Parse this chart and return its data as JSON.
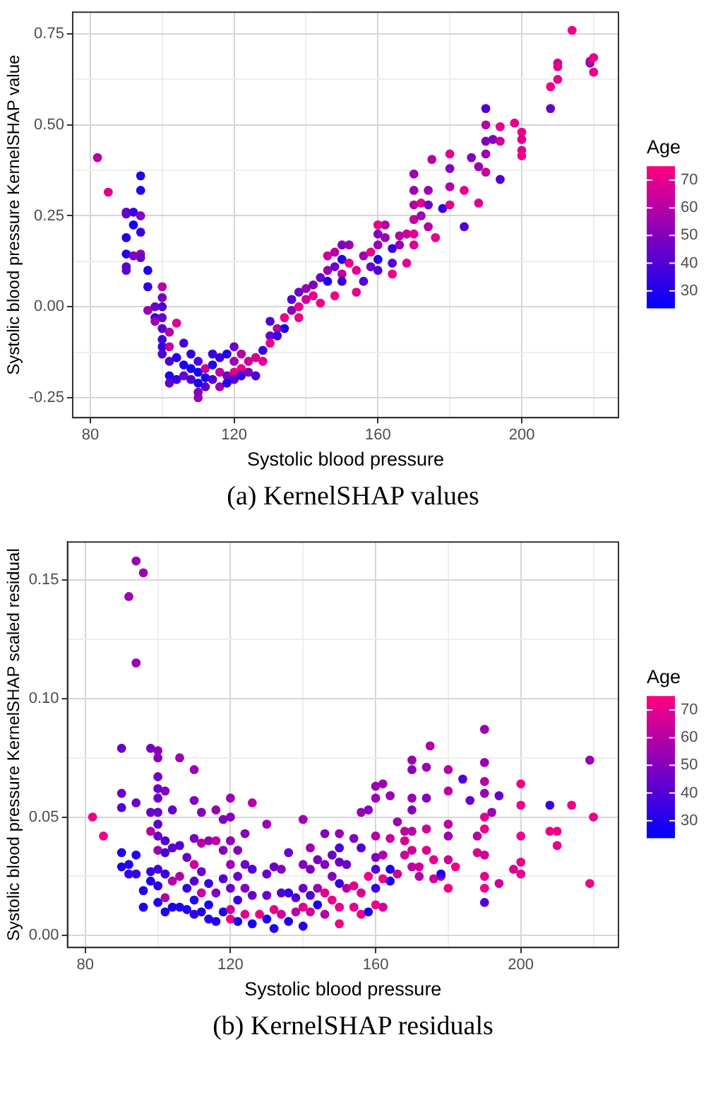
{
  "chart_data": [
    {
      "type": "scatter",
      "title": "(a) KernelSHAP values",
      "xlabel": "Systolic blood pressure",
      "ylabel": "Systolic blood pressure KernelSHAP value",
      "clabel": "Age",
      "grid": true,
      "marker": "circle",
      "xlim": [
        75.1,
        226.9
      ],
      "ylim": [
        -0.305,
        0.81
      ],
      "xticks": [
        80,
        {
          "value": 100,
          "label": null
        },
        120,
        {
          "value": 140,
          "label": null
        },
        160,
        {
          "value": 180,
          "label": null
        },
        200,
        {
          "value": 220,
          "label": null
        }
      ],
      "yticks": [
        {
          "value": -0.25,
          "label": "-0.25"
        },
        {
          "value": -0.125,
          "label": null
        },
        {
          "value": 0,
          "label": "0.00"
        },
        {
          "value": 0.125,
          "label": null
        },
        {
          "value": 0.25,
          "label": "0.25"
        },
        {
          "value": 0.375,
          "label": null
        },
        {
          "value": 0.5,
          "label": "0.50"
        },
        {
          "value": 0.625,
          "label": null
        },
        {
          "value": 0.75,
          "label": "0.75"
        }
      ],
      "clim": [
        24,
        75
      ],
      "cticks": [
        30,
        40,
        50,
        60,
        70
      ],
      "x": [
        82,
        85,
        90,
        90,
        90,
        90,
        90,
        90,
        92,
        92,
        92,
        94,
        94,
        94,
        94,
        94,
        94,
        96,
        96,
        96,
        98,
        98,
        98,
        100,
        100,
        100,
        100,
        100,
        100,
        100,
        100,
        102,
        102,
        102,
        102,
        102,
        104,
        104,
        104,
        106,
        106,
        106,
        108,
        108,
        108,
        110,
        110,
        110,
        110,
        110,
        112,
        112,
        112,
        114,
        114,
        114,
        116,
        116,
        116,
        118,
        118,
        118,
        120,
        120,
        120,
        120,
        122,
        122,
        122,
        124,
        124,
        126,
        126,
        128,
        128,
        130,
        130,
        130,
        132,
        132,
        134,
        134,
        136,
        136,
        138,
        138,
        138,
        140,
        140,
        142,
        142,
        144,
        144,
        146,
        146,
        146,
        148,
        148,
        148,
        150,
        150,
        150,
        150,
        152,
        152,
        154,
        154,
        156,
        156,
        158,
        158,
        160,
        160,
        160,
        160,
        160,
        162,
        162,
        164,
        164,
        164,
        166,
        166,
        168,
        168,
        170,
        170,
        170,
        170,
        170,
        170,
        172,
        172,
        174,
        174,
        174,
        175,
        176,
        178,
        180,
        180,
        180,
        180,
        184,
        184,
        186,
        188,
        188,
        190,
        190,
        190,
        190,
        190,
        192,
        194,
        194,
        194,
        198,
        200,
        200,
        200,
        200,
        208,
        208,
        210,
        210,
        210,
        214,
        219,
        219,
        220,
        220
      ],
      "values": [
        0.41,
        0.315,
        0.26,
        0.255,
        0.19,
        0.145,
        0.11,
        0.1,
        0.26,
        0.225,
        0.14,
        0.36,
        0.32,
        0.25,
        0.205,
        0.145,
        0.135,
        0.1,
        0.055,
        -0.01,
        0.0,
        -0.03,
        -0.04,
        0.055,
        0.025,
        0.0,
        -0.03,
        -0.06,
        -0.09,
        -0.11,
        -0.13,
        -0.07,
        -0.11,
        -0.15,
        -0.19,
        -0.21,
        -0.045,
        -0.14,
        -0.2,
        -0.1,
        -0.16,
        -0.19,
        -0.13,
        -0.17,
        -0.2,
        -0.15,
        -0.18,
        -0.21,
        -0.25,
        -0.235,
        -0.17,
        -0.195,
        -0.22,
        -0.13,
        -0.16,
        -0.2,
        -0.14,
        -0.18,
        -0.22,
        -0.13,
        -0.19,
        -0.21,
        -0.11,
        -0.15,
        -0.18,
        -0.2,
        -0.13,
        -0.17,
        -0.19,
        -0.15,
        -0.18,
        -0.14,
        -0.19,
        -0.12,
        -0.15,
        -0.04,
        -0.08,
        -0.1,
        -0.06,
        -0.08,
        -0.03,
        -0.06,
        0.02,
        -0.01,
        0.04,
        0.0,
        -0.03,
        0.05,
        0.02,
        0.06,
        0.03,
        0.08,
        0.01,
        0.14,
        0.1,
        0.07,
        0.15,
        0.11,
        0.03,
        0.17,
        0.13,
        0.09,
        0.07,
        0.17,
        0.12,
        0.1,
        0.04,
        0.14,
        0.07,
        0.15,
        0.11,
        0.225,
        0.2,
        0.17,
        0.13,
        0.1,
        0.225,
        0.19,
        0.16,
        0.12,
        0.09,
        0.195,
        0.17,
        0.2,
        0.12,
        0.365,
        0.32,
        0.28,
        0.24,
        0.2,
        0.17,
        0.285,
        0.25,
        0.32,
        0.28,
        0.22,
        0.405,
        0.19,
        0.27,
        0.42,
        0.38,
        0.33,
        0.28,
        0.32,
        0.22,
        0.41,
        0.385,
        0.285,
        0.545,
        0.5,
        0.455,
        0.42,
        0.37,
        0.46,
        0.495,
        0.455,
        0.35,
        0.505,
        0.48,
        0.46,
        0.43,
        0.415,
        0.605,
        0.545,
        0.67,
        0.66,
        0.625,
        0.76,
        0.67,
        0.675,
        0.685,
        0.645
      ],
      "cvalues": [
        60,
        68,
        40,
        45,
        30,
        30,
        42,
        42,
        35,
        28,
        50,
        30,
        30,
        50,
        35,
        55,
        45,
        30,
        32,
        55,
        45,
        35,
        55,
        62,
        48,
        40,
        45,
        42,
        38,
        35,
        40,
        60,
        62,
        40,
        30,
        45,
        68,
        30,
        35,
        38,
        30,
        45,
        33,
        28,
        40,
        40,
        30,
        28,
        55,
        50,
        65,
        30,
        42,
        35,
        30,
        40,
        35,
        62,
        55,
        30,
        48,
        30,
        45,
        55,
        70,
        40,
        60,
        72,
        35,
        65,
        50,
        68,
        38,
        35,
        70,
        40,
        45,
        70,
        60,
        35,
        72,
        30,
        40,
        50,
        45,
        70,
        72,
        55,
        65,
        50,
        70,
        45,
        72,
        65,
        55,
        30,
        60,
        45,
        72,
        50,
        30,
        62,
        35,
        55,
        72,
        68,
        70,
        55,
        40,
        72,
        45,
        70,
        50,
        55,
        30,
        40,
        60,
        55,
        35,
        40,
        72,
        60,
        55,
        65,
        70,
        55,
        55,
        60,
        62,
        70,
        68,
        70,
        55,
        55,
        45,
        60,
        60,
        70,
        35,
        70,
        50,
        60,
        70,
        70,
        40,
        50,
        55,
        68,
        40,
        60,
        50,
        55,
        65,
        50,
        70,
        65,
        40,
        70,
        72,
        68,
        70,
        72,
        72,
        45,
        65,
        70,
        70,
        72,
        50,
        60,
        72,
        70
      ]
    },
    {
      "type": "scatter",
      "title": "(b) KernelSHAP residuals",
      "xlabel": "Systolic blood pressure",
      "ylabel": "Systolic blood pressure KernelSHAP scaled residual",
      "clabel": "Age",
      "grid": true,
      "marker": "circle",
      "xlim": [
        75.1,
        226.9
      ],
      "ylim": [
        -0.005,
        0.166
      ],
      "xticks": [
        80,
        {
          "value": 100,
          "label": null
        },
        120,
        {
          "value": 140,
          "label": null
        },
        160,
        {
          "value": 180,
          "label": null
        },
        200,
        {
          "value": 220,
          "label": null
        }
      ],
      "yticks": [
        {
          "value": 0,
          "label": "0.00"
        },
        {
          "value": 0.025,
          "label": null
        },
        {
          "value": 0.05,
          "label": "0.05"
        },
        {
          "value": 0.075,
          "label": null
        },
        {
          "value": 0.1,
          "label": "0.10"
        },
        {
          "value": 0.125,
          "label": null
        },
        {
          "value": 0.15,
          "label": "0.15"
        }
      ],
      "clim": [
        24,
        75
      ],
      "cticks": [
        30,
        40,
        50,
        60,
        70
      ],
      "x": [
        82,
        85,
        90,
        90,
        90,
        90,
        90,
        92,
        92,
        92,
        94,
        94,
        94,
        94,
        94,
        96,
        96,
        96,
        98,
        98,
        98,
        98,
        98,
        100,
        100,
        100,
        100,
        100,
        100,
        100,
        100,
        100,
        100,
        100,
        100,
        102,
        102,
        102,
        102,
        102,
        102,
        104,
        104,
        104,
        104,
        106,
        106,
        106,
        106,
        108,
        108,
        108,
        110,
        110,
        110,
        110,
        110,
        110,
        110,
        112,
        112,
        112,
        112,
        112,
        114,
        114,
        114,
        114,
        116,
        116,
        116,
        116,
        118,
        118,
        118,
        118,
        120,
        120,
        120,
        120,
        120,
        120,
        120,
        122,
        122,
        122,
        122,
        124,
        124,
        124,
        124,
        126,
        126,
        126,
        126,
        128,
        130,
        130,
        130,
        130,
        132,
        132,
        132,
        134,
        134,
        134,
        136,
        136,
        136,
        138,
        138,
        140,
        140,
        140,
        140,
        140,
        142,
        142,
        142,
        142,
        144,
        144,
        144,
        146,
        146,
        146,
        146,
        148,
        148,
        148,
        150,
        150,
        150,
        150,
        150,
        150,
        152,
        152,
        154,
        154,
        154,
        156,
        156,
        156,
        156,
        158,
        158,
        158,
        160,
        160,
        160,
        160,
        160,
        160,
        160,
        162,
        162,
        162,
        162,
        164,
        164,
        164,
        164,
        166,
        166,
        168,
        168,
        168,
        170,
        170,
        170,
        170,
        170,
        170,
        170,
        172,
        172,
        174,
        174,
        174,
        174,
        175,
        176,
        176,
        178,
        178,
        180,
        180,
        180,
        180,
        180,
        180,
        182,
        184,
        186,
        188,
        188,
        190,
        190,
        190,
        190,
        190,
        190,
        190,
        190,
        190,
        190,
        192,
        194,
        194,
        198,
        200,
        200,
        200,
        200,
        200,
        208,
        208,
        210,
        210,
        214,
        219,
        219,
        220
      ],
      "values": [
        0.05,
        0.042,
        0.079,
        0.06,
        0.054,
        0.035,
        0.029,
        0.143,
        0.03,
        0.026,
        0.158,
        0.115,
        0.056,
        0.034,
        0.026,
        0.153,
        0.019,
        0.012,
        0.079,
        0.052,
        0.044,
        0.027,
        0.023,
        0.078,
        0.075,
        0.067,
        0.062,
        0.058,
        0.052,
        0.047,
        0.042,
        0.036,
        0.028,
        0.021,
        0.014,
        0.061,
        0.04,
        0.035,
        0.026,
        0.016,
        0.01,
        0.053,
        0.037,
        0.023,
        0.012,
        0.075,
        0.038,
        0.025,
        0.012,
        0.033,
        0.02,
        0.011,
        0.07,
        0.057,
        0.041,
        0.03,
        0.023,
        0.015,
        0.009,
        0.052,
        0.039,
        0.027,
        0.018,
        0.01,
        0.04,
        0.022,
        0.013,
        0.007,
        0.053,
        0.04,
        0.018,
        0.006,
        0.049,
        0.036,
        0.024,
        0.01,
        0.058,
        0.05,
        0.04,
        0.03,
        0.02,
        0.011,
        0.007,
        0.036,
        0.025,
        0.015,
        0.006,
        0.043,
        0.03,
        0.02,
        0.009,
        0.056,
        0.028,
        0.017,
        0.005,
        0.009,
        0.047,
        0.026,
        0.017,
        0.007,
        0.029,
        0.011,
        0.003,
        0.028,
        0.018,
        0.009,
        0.035,
        0.018,
        0.006,
        0.016,
        0.01,
        0.049,
        0.03,
        0.02,
        0.012,
        0.004,
        0.037,
        0.028,
        0.017,
        0.01,
        0.032,
        0.02,
        0.013,
        0.043,
        0.03,
        0.018,
        0.009,
        0.034,
        0.025,
        0.015,
        0.043,
        0.037,
        0.031,
        0.022,
        0.012,
        0.005,
        0.03,
        0.02,
        0.041,
        0.021,
        0.012,
        0.052,
        0.037,
        0.018,
        0.009,
        0.053,
        0.025,
        0.01,
        0.063,
        0.058,
        0.042,
        0.033,
        0.028,
        0.02,
        0.013,
        0.064,
        0.034,
        0.024,
        0.012,
        0.059,
        0.041,
        0.028,
        0.023,
        0.048,
        0.026,
        0.044,
        0.04,
        0.034,
        0.074,
        0.07,
        0.058,
        0.053,
        0.044,
        0.036,
        0.029,
        0.029,
        0.025,
        0.071,
        0.058,
        0.045,
        0.036,
        0.08,
        0.032,
        0.024,
        0.025,
        0.026,
        0.07,
        0.061,
        0.047,
        0.042,
        0.032,
        0.02,
        0.029,
        0.066,
        0.057,
        0.042,
        0.035,
        0.087,
        0.073,
        0.065,
        0.06,
        0.05,
        0.045,
        0.034,
        0.025,
        0.02,
        0.014,
        0.052,
        0.059,
        0.022,
        0.028,
        0.064,
        0.055,
        0.042,
        0.031,
        0.026,
        0.055,
        0.044,
        0.044,
        0.038,
        0.055,
        0.074,
        0.022,
        0.05
      ],
      "cvalues": [
        72,
        72,
        45,
        45,
        40,
        30,
        30,
        55,
        30,
        35,
        55,
        55,
        45,
        30,
        35,
        55,
        30,
        30,
        48,
        45,
        60,
        35,
        30,
        52,
        50,
        48,
        45,
        45,
        45,
        42,
        45,
        55,
        38,
        32,
        30,
        50,
        40,
        38,
        35,
        60,
        30,
        45,
        42,
        60,
        30,
        55,
        40,
        60,
        32,
        45,
        35,
        30,
        55,
        50,
        48,
        65,
        40,
        32,
        35,
        50,
        60,
        45,
        65,
        30,
        55,
        35,
        30,
        32,
        55,
        62,
        50,
        30,
        50,
        50,
        40,
        30,
        55,
        50,
        52,
        55,
        45,
        65,
        72,
        50,
        45,
        35,
        30,
        50,
        45,
        50,
        70,
        60,
        40,
        45,
        30,
        72,
        55,
        45,
        45,
        30,
        45,
        70,
        30,
        50,
        40,
        65,
        45,
        35,
        30,
        40,
        60,
        55,
        50,
        45,
        70,
        30,
        55,
        50,
        40,
        65,
        48,
        55,
        30,
        50,
        50,
        70,
        60,
        45,
        50,
        72,
        55,
        40,
        45,
        35,
        70,
        72,
        45,
        60,
        50,
        70,
        70,
        55,
        40,
        68,
        72,
        50,
        72,
        30,
        55,
        55,
        60,
        50,
        40,
        35,
        72,
        55,
        60,
        72,
        65,
        55,
        65,
        30,
        30,
        55,
        65,
        62,
        68,
        65,
        55,
        52,
        55,
        50,
        60,
        65,
        62,
        65,
        60,
        55,
        50,
        65,
        68,
        60,
        70,
        65,
        60,
        30,
        60,
        62,
        62,
        55,
        65,
        72,
        72,
        40,
        45,
        60,
        68,
        55,
        55,
        60,
        55,
        70,
        72,
        65,
        70,
        72,
        40,
        55,
        45,
        65,
        68,
        72,
        72,
        72,
        72,
        70,
        35,
        72,
        72,
        70,
        72,
        55,
        72,
        72
      ]
    }
  ]
}
